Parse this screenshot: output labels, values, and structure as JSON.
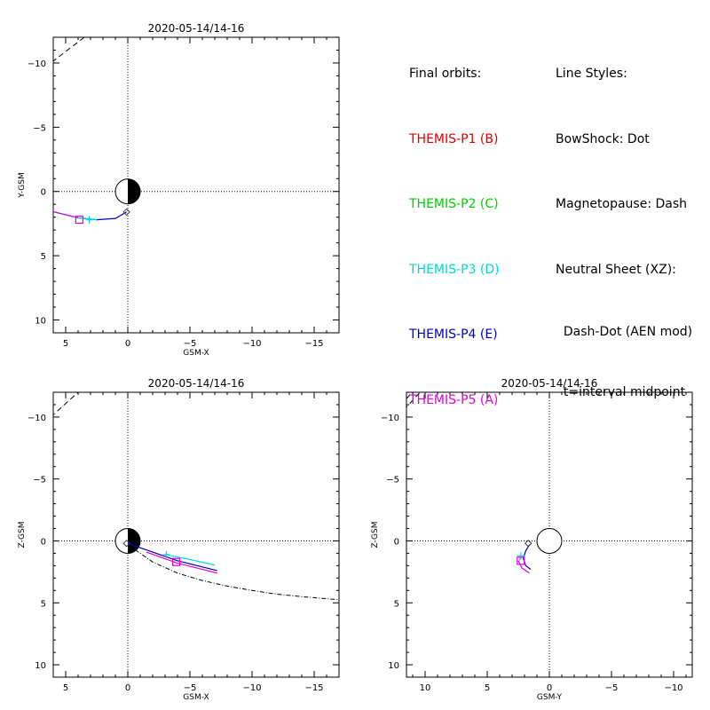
{
  "legend": {
    "orbits_title": "Final orbits:",
    "probes": [
      {
        "label": "THEMIS-P1 (B)",
        "color": "#e00000"
      },
      {
        "label": "THEMIS-P2 (C)",
        "color": "#00d000"
      },
      {
        "label": "THEMIS-P3 (D)",
        "color": "#00d8d8"
      },
      {
        "label": "THEMIS-P4 (E)",
        "color": "#0000c0"
      },
      {
        "label": "THEMIS-P5 (A)",
        "color": "#e000e0"
      }
    ],
    "styles_title": "Line Styles:",
    "styles": [
      "BowShock: Dot",
      "Magnetopause: Dash",
      "Neutral Sheet (XZ):",
      "  Dash-Dot (AEN mod)",
      "  t=interval midpoint"
    ]
  },
  "chart_data": [
    {
      "type": "line",
      "title": "2020-05-14/14-16",
      "xlabel": "GSM-X",
      "ylabel": "Y-GSM",
      "xlim": [
        6,
        -17
      ],
      "ylim": [
        -12,
        11
      ],
      "xticks": [
        5,
        0,
        -5,
        -10,
        -15
      ],
      "yticks": [
        -10,
        -5,
        0,
        5,
        10
      ],
      "magnetopause": [
        [
          3.5,
          -12
        ],
        [
          6.2,
          -10
        ]
      ],
      "series": [
        {
          "name": "THEMIS-P4 (E)",
          "color": "#0000c0",
          "points": [
            [
              0.1,
              1.6
            ],
            [
              1,
              2.1
            ],
            [
              2.5,
              2.2
            ],
            [
              4,
              2.05
            ],
            [
              5.5,
              1.7
            ],
            [
              7,
              1.3
            ],
            [
              7.4,
              1.15
            ]
          ]
        },
        {
          "name": "THEMIS-P3 (D)",
          "color": "#00d8d8",
          "points": [
            [
              2.5,
              2.2
            ],
            [
              4,
              2.05
            ],
            [
              5.5,
              1.7
            ],
            [
              7,
              1.3
            ],
            [
              7.4,
              1.15
            ]
          ]
        },
        {
          "name": "THEMIS-P5 (A)",
          "color": "#e000e0",
          "points": [
            [
              4,
              2.05
            ],
            [
              5.5,
              1.7
            ],
            [
              6.5,
              1.45
            ]
          ]
        }
      ],
      "markers": [
        {
          "shape": "diamond",
          "color": "#404040",
          "x": 0.1,
          "y": 1.6
        },
        {
          "shape": "plus",
          "color": "#00d8d8",
          "x": 3.1,
          "y": 2.2
        },
        {
          "shape": "square",
          "color": "#e000e0",
          "x": 3.9,
          "y": 2.2
        }
      ]
    },
    {
      "type": "line",
      "title": "2020-05-14/14-16",
      "xlabel": "GSM-X",
      "ylabel": "Z-GSM",
      "xlim": [
        6,
        -17
      ],
      "ylim": [
        -12,
        11
      ],
      "xticks": [
        5,
        0,
        -5,
        -10,
        -15
      ],
      "yticks": [
        -10,
        -5,
        0,
        5,
        10
      ],
      "magnetopause": [
        [
          6.2,
          -10
        ],
        [
          4,
          -12
        ]
      ],
      "neutral_sheet": [
        [
          0,
          0.3
        ],
        [
          -2,
          1.7
        ],
        [
          -4,
          2.6
        ],
        [
          -6,
          3.2
        ],
        [
          -8,
          3.65
        ],
        [
          -10,
          4.0
        ],
        [
          -12,
          4.3
        ],
        [
          -14,
          4.5
        ],
        [
          -17,
          4.75
        ]
      ],
      "series": [
        {
          "name": "THEMIS-P4 (E)",
          "color": "#0000c0",
          "points": [
            [
              0,
              0.2
            ],
            [
              -2,
              0.9
            ],
            [
              -4,
              1.6
            ],
            [
              -6,
              2.1
            ],
            [
              -7.2,
              2.4
            ]
          ]
        },
        {
          "name": "THEMIS-P5 (A)",
          "color": "#e000e0",
          "points": [
            [
              -1.5,
              0.9
            ],
            [
              -4,
              1.8
            ],
            [
              -6,
              2.3
            ],
            [
              -7.2,
              2.6
            ]
          ]
        },
        {
          "name": "THEMIS-P3 (D)",
          "color": "#00d8d8",
          "points": [
            [
              -3,
              1.1
            ],
            [
              -5,
              1.5
            ],
            [
              -7,
              1.95
            ]
          ]
        }
      ],
      "markers": [
        {
          "shape": "diamond",
          "color": "#404040",
          "x": 0.1,
          "y": 0.2
        },
        {
          "shape": "plus",
          "color": "#00d8d8",
          "x": -3.1,
          "y": 1.1
        },
        {
          "shape": "square",
          "color": "#e000e0",
          "x": -3.9,
          "y": 1.7
        }
      ]
    },
    {
      "type": "line",
      "title": "2020-05-14/14-16",
      "xlabel": "GSM-Y",
      "ylabel": "Z-GSM",
      "xlim": [
        11.5,
        -11.5
      ],
      "ylim": [
        -12,
        11
      ],
      "xticks": [
        10,
        5,
        0,
        -5,
        -10
      ],
      "yticks": [
        -10,
        -5,
        0,
        5,
        10
      ],
      "magnetopause_left": [
        [
          11.5,
          -11.5
        ],
        [
          10,
          -13
        ]
      ],
      "magnetopause_corner": [
        [
          9.5,
          -13
        ],
        [
          11.5,
          -10.8
        ]
      ],
      "series": [
        {
          "name": "THEMIS-P4 (E)",
          "color": "#0000c0",
          "points": [
            [
              1.6,
              0.3
            ],
            [
              1.9,
              0.8
            ],
            [
              2.1,
              1.4
            ],
            [
              1.9,
              2.0
            ],
            [
              1.5,
              2.3
            ]
          ]
        },
        {
          "name": "THEMIS-P3 (D)",
          "color": "#00d8d8",
          "points": [
            [
              2.3,
              1.2
            ],
            [
              2.4,
              1.6
            ]
          ]
        },
        {
          "name": "THEMIS-P5 (A)",
          "color": "#e000e0",
          "points": [
            [
              2.5,
              1.6
            ],
            [
              2.2,
              2.2
            ],
            [
              1.6,
              2.6
            ]
          ]
        }
      ],
      "markers": [
        {
          "shape": "diamond",
          "color": "#404040",
          "x": 1.7,
          "y": 0.2
        },
        {
          "shape": "plus",
          "color": "#00d8d8",
          "x": 2.3,
          "y": 1.2
        },
        {
          "shape": "square",
          "color": "#e000e0",
          "x": 2.3,
          "y": 1.6
        }
      ]
    }
  ]
}
